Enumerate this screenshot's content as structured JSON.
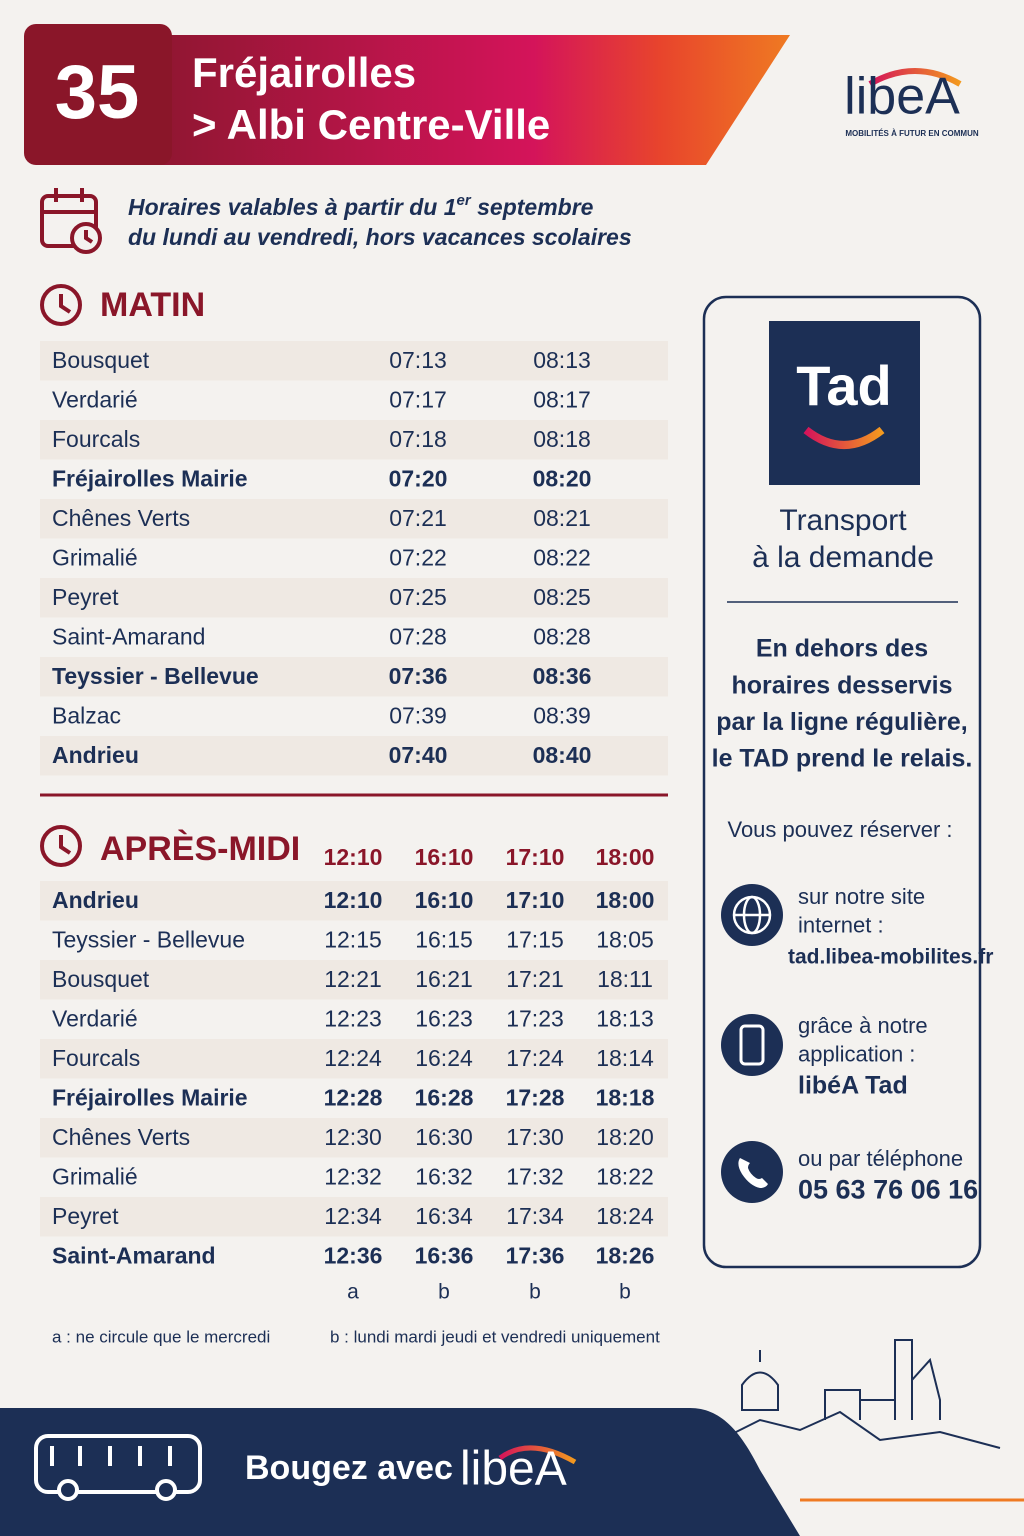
{
  "header": {
    "line": "35",
    "title_line1": "Fréjairolles",
    "title_line2": "> Albi Centre-Ville",
    "logo": "libeA",
    "logo_tagline": "MOBILITÉS À FUTUR EN COMMUN"
  },
  "validity": {
    "line1_start": "Horaires valables à partir du 1",
    "line1_sup": "er",
    "line1_end": " septembre",
    "line2": "du lundi au vendredi, hors vacances scolaires"
  },
  "morning": {
    "title": "MATIN",
    "rows": [
      {
        "stop": "Bousquet",
        "times": [
          "07:13",
          "08:13"
        ],
        "bold": false
      },
      {
        "stop": "Verdarié",
        "times": [
          "07:17",
          "08:17"
        ],
        "bold": false
      },
      {
        "stop": "Fourcals",
        "times": [
          "07:18",
          "08:18"
        ],
        "bold": false
      },
      {
        "stop": "Fréjairolles Mairie",
        "times": [
          "07:20",
          "08:20"
        ],
        "bold": true
      },
      {
        "stop": "Chênes Verts",
        "times": [
          "07:21",
          "08:21"
        ],
        "bold": false
      },
      {
        "stop": "Grimalié",
        "times": [
          "07:22",
          "08:22"
        ],
        "bold": false
      },
      {
        "stop": "Peyret",
        "times": [
          "07:25",
          "08:25"
        ],
        "bold": false
      },
      {
        "stop": "Saint-Amarand",
        "times": [
          "07:28",
          "08:28"
        ],
        "bold": false
      },
      {
        "stop": "Teyssier - Bellevue",
        "times": [
          "07:36",
          "08:36"
        ],
        "bold": true
      },
      {
        "stop": "Balzac",
        "times": [
          "07:39",
          "08:39"
        ],
        "bold": false
      },
      {
        "stop": "Andrieu",
        "times": [
          "07:40",
          "08:40"
        ],
        "bold": true
      }
    ]
  },
  "afternoon": {
    "title": "APRÈS-MIDI",
    "headers": [
      "12:10",
      "16:10",
      "17:10",
      "18:00"
    ],
    "rows": [
      {
        "stop": "Andrieu",
        "times": [
          "12:10",
          "16:10",
          "17:10",
          "18:00"
        ],
        "bold": true
      },
      {
        "stop": "Teyssier - Bellevue",
        "times": [
          "12:15",
          "16:15",
          "17:15",
          "18:05"
        ],
        "bold": false
      },
      {
        "stop": "Bousquet",
        "times": [
          "12:21",
          "16:21",
          "17:21",
          "18:11"
        ],
        "bold": false
      },
      {
        "stop": "Verdarié",
        "times": [
          "12:23",
          "16:23",
          "17:23",
          "18:13"
        ],
        "bold": false
      },
      {
        "stop": "Fourcals",
        "times": [
          "12:24",
          "16:24",
          "17:24",
          "18:14"
        ],
        "bold": false
      },
      {
        "stop": "Fréjairolles Mairie",
        "times": [
          "12:28",
          "16:28",
          "17:28",
          "18:18"
        ],
        "bold": true
      },
      {
        "stop": "Chênes Verts",
        "times": [
          "12:30",
          "16:30",
          "17:30",
          "18:20"
        ],
        "bold": false
      },
      {
        "stop": "Grimalié",
        "times": [
          "12:32",
          "16:32",
          "17:32",
          "18:22"
        ],
        "bold": false
      },
      {
        "stop": "Peyret",
        "times": [
          "12:34",
          "16:34",
          "17:34",
          "18:24"
        ],
        "bold": false
      },
      {
        "stop": "Saint-Amarand",
        "times": [
          "12:36",
          "16:36",
          "17:36",
          "18:26"
        ],
        "bold": true
      }
    ],
    "notes": [
      "a",
      "b",
      "b",
      "b"
    ],
    "footnotes": [
      "a : ne circule que le mercredi",
      "b : lundi mardi jeudi et vendredi uniquement"
    ]
  },
  "tad": {
    "logo": "Tad",
    "title_line1": "Transport",
    "title_line2": "à la demande",
    "description": [
      "En dehors des",
      "horaires desservis",
      "par la ligne régulière,",
      "le TAD prend le relais."
    ],
    "reserve": "Vous pouvez réserver :",
    "options": [
      {
        "lines": [
          "sur notre site",
          "internet :"
        ],
        "highlight": "tad.libea-mobilites.fr"
      },
      {
        "lines": [
          "grâce à notre",
          "application :"
        ],
        "highlight": "libéA Tad"
      },
      {
        "lines": [
          "ou par téléphone"
        ],
        "highlight": "05 63 76 06 16"
      }
    ]
  },
  "footer": {
    "text": "Bougez avec",
    "logo": "libeA"
  }
}
